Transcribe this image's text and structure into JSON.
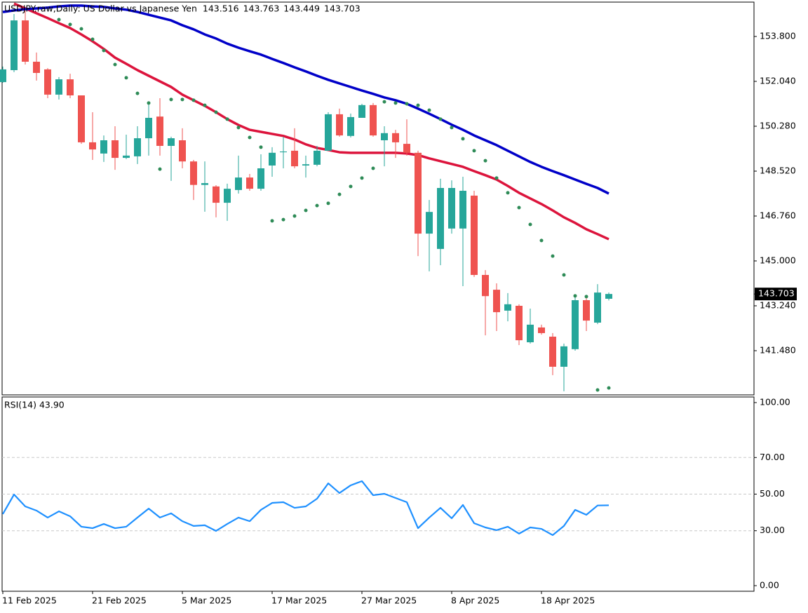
{
  "chart_data": [
    {
      "type": "candlestick",
      "title": "USDJPY.raw,Daily:  US Dollar vs Japanese Yen",
      "categories": [
        "11 Feb 2025",
        null,
        null,
        null,
        null,
        null,
        null,
        null,
        "21 Feb 2025",
        null,
        null,
        null,
        null,
        null,
        null,
        null,
        "5 Mar 2025",
        null,
        null,
        null,
        null,
        null,
        null,
        null,
        "17 Mar 2025",
        null,
        null,
        null,
        null,
        null,
        null,
        null,
        "27 Mar 2025",
        null,
        null,
        null,
        null,
        null,
        null,
        null,
        "8 Apr 2025",
        null,
        null,
        null,
        null,
        null,
        null,
        null,
        "18 Apr 2025",
        null,
        null,
        null,
        null,
        null,
        null
      ],
      "open": [
        152.01,
        152.48,
        154.43,
        152.81,
        152.51,
        151.52,
        152.12,
        151.49,
        149.65,
        149.21,
        149.73,
        149.04,
        149.1,
        149.81,
        150.66,
        149.51,
        149.73,
        148.9,
        147.98,
        147.92,
        147.28,
        147.78,
        148.27,
        147.83,
        148.74,
        149.26,
        149.32,
        148.74,
        148.77,
        149.32,
        150.75,
        149.9,
        150.61,
        151.11,
        149.73,
        150.01,
        149.59,
        149.24,
        146.07,
        145.47,
        146.27,
        146.27,
        147.56,
        144.45,
        143.87,
        143.05,
        143.24,
        141.81,
        142.39,
        142.03,
        140.85,
        141.54,
        143.46,
        142.58,
        143.516
      ],
      "high": [
        152.62,
        154.68,
        154.82,
        153.17,
        152.56,
        152.21,
        152.34,
        151.49,
        150.83,
        149.92,
        150.28,
        149.95,
        150.28,
        151.24,
        151.38,
        149.87,
        150.2,
        148.96,
        148.9,
        147.97,
        148.03,
        149.13,
        148.41,
        149.18,
        149.46,
        149.87,
        150.2,
        149.13,
        149.51,
        150.83,
        150.97,
        150.78,
        151.16,
        151.19,
        150.28,
        150.14,
        150.55,
        149.32,
        147.39,
        148.22,
        148.16,
        148.3,
        147.75,
        144.64,
        144.12,
        143.74,
        143.3,
        143.13,
        142.5,
        142.17,
        141.76,
        143.68,
        143.54,
        144.09,
        143.763
      ],
      "low": [
        151.99,
        152.4,
        152.7,
        152.07,
        151.38,
        151.33,
        151.38,
        149.59,
        148.96,
        148.88,
        148.57,
        148.99,
        148.8,
        149.13,
        149.13,
        148.14,
        148.63,
        147.39,
        146.93,
        146.71,
        146.57,
        147.64,
        147.75,
        147.75,
        148.3,
        148.63,
        148.63,
        148.27,
        148.71,
        149.32,
        149.87,
        149.84,
        150.61,
        149.87,
        148.71,
        149.04,
        149.13,
        145.19,
        144.59,
        144.83,
        146.07,
        144.01,
        144.37,
        142.08,
        142.25,
        142.63,
        141.7,
        141.76,
        142.11,
        140.52,
        139.89,
        141.48,
        142.25,
        142.52,
        143.449
      ],
      "close": [
        152.51,
        154.43,
        152.81,
        152.37,
        151.52,
        152.12,
        151.49,
        149.65,
        149.37,
        149.73,
        149.04,
        149.13,
        149.81,
        150.61,
        149.51,
        149.81,
        148.9,
        147.98,
        148.05,
        147.28,
        147.83,
        148.27,
        147.83,
        148.63,
        149.24,
        149.29,
        148.71,
        148.79,
        149.32,
        150.75,
        149.92,
        150.64,
        151.11,
        149.92,
        150.01,
        149.65,
        149.24,
        146.07,
        146.92,
        147.86,
        147.86,
        147.75,
        144.45,
        143.62,
        142.99,
        143.3,
        141.89,
        142.5,
        142.17,
        140.85,
        141.65,
        143.46,
        142.66,
        143.76,
        143.703
      ],
      "up_color": "#26a69a",
      "down_color": "#ef5350",
      "lines": [
        {
          "color": "#dc143c",
          "values": [
            null,
            155.09,
            154.9,
            154.71,
            154.52,
            154.32,
            154.13,
            153.88,
            153.61,
            153.31,
            152.97,
            152.73,
            152.48,
            152.26,
            152.04,
            151.82,
            151.52,
            151.3,
            151.08,
            150.83,
            150.56,
            150.33,
            150.14,
            150.06,
            149.98,
            149.9,
            149.76,
            149.57,
            149.43,
            149.35,
            149.26,
            149.24,
            149.24,
            149.24,
            149.24,
            149.24,
            149.21,
            149.15,
            149.02,
            148.91,
            148.8,
            148.69,
            148.52,
            148.36,
            148.19,
            147.94,
            147.67,
            147.45,
            147.23,
            146.98,
            146.71,
            146.49,
            146.24,
            146.05,
            145.85
          ]
        },
        {
          "color": "#0000c8",
          "values": [
            154.76,
            154.82,
            154.87,
            154.9,
            154.93,
            154.98,
            155.01,
            155.01,
            154.98,
            154.96,
            154.9,
            154.85,
            154.76,
            154.65,
            154.54,
            154.43,
            154.24,
            154.08,
            153.88,
            153.72,
            153.52,
            153.36,
            153.22,
            153.09,
            152.92,
            152.76,
            152.59,
            152.43,
            152.26,
            152.1,
            151.96,
            151.82,
            151.68,
            151.55,
            151.41,
            151.3,
            151.16,
            150.97,
            150.77,
            150.56,
            150.34,
            150.14,
            149.92,
            149.73,
            149.54,
            149.32,
            149.1,
            148.88,
            148.69,
            148.52,
            148.36,
            148.19,
            148.02,
            147.86,
            147.64
          ]
        }
      ],
      "sar": {
        "color": "#2e8b57",
        "values": [
          null,
          null,
          null,
          null,
          null,
          154.46,
          154.27,
          154.1,
          153.69,
          153.25,
          152.7,
          152.18,
          151.57,
          151.19,
          148.6,
          151.33,
          151.33,
          151.3,
          151.1,
          150.83,
          150.56,
          150.23,
          149.84,
          149.46,
          146.57,
          146.62,
          146.76,
          146.98,
          147.17,
          147.26,
          147.61,
          147.92,
          148.25,
          148.63,
          151.24,
          151.19,
          151.16,
          151.1,
          150.91,
          150.56,
          150.23,
          149.79,
          149.32,
          148.93,
          148.25,
          147.67,
          147.09,
          146.43,
          145.8,
          145.19,
          144.45,
          143.63,
          143.6,
          139.94,
          140.02
        ]
      },
      "ylim": [
        139.7475,
        155.1475
      ],
      "yticks": [
        {
          "value": 141.48,
          "label": "141.480"
        },
        {
          "value": 143.24,
          "label": "143.240"
        },
        {
          "value": 145.0,
          "label": "145.000"
        },
        {
          "value": 146.76,
          "label": "146.760"
        },
        {
          "value": 148.52,
          "label": "148.520"
        },
        {
          "value": 150.28,
          "label": "150.280"
        },
        {
          "value": 152.04,
          "label": "152.040"
        },
        {
          "value": 153.8,
          "label": "153.800"
        }
      ]
    },
    {
      "type": "line",
      "title": "RSI(14) 43.90",
      "color": "#1e90ff",
      "values": [
        39.1,
        49.8,
        43.3,
        41.0,
        37.2,
        40.6,
        37.9,
        32.2,
        31.4,
        33.7,
        31.4,
        32.2,
        37.2,
        42.1,
        37.2,
        39.5,
        35.2,
        32.6,
        33.0,
        29.9,
        33.7,
        37.2,
        35.2,
        41.4,
        45.2,
        45.6,
        42.5,
        43.3,
        47.5,
        55.9,
        50.6,
        54.8,
        57.1,
        49.4,
        50.2,
        47.9,
        45.6,
        31.4,
        37.2,
        42.5,
        36.8,
        44.1,
        34.1,
        31.8,
        30.3,
        32.2,
        28.4,
        31.8,
        31.0,
        27.6,
        32.6,
        41.4,
        38.7,
        43.8,
        43.9
      ],
      "ylim": [
        -3.07,
        103.07
      ],
      "yticks": [
        {
          "value": 0,
          "label": "0.00"
        },
        {
          "value": 30,
          "label": "30.00"
        },
        {
          "value": 50,
          "label": "50.00"
        },
        {
          "value": 70,
          "label": "70.00"
        },
        {
          "value": 100,
          "label": "100.00"
        }
      ],
      "grid": true
    }
  ]
}
